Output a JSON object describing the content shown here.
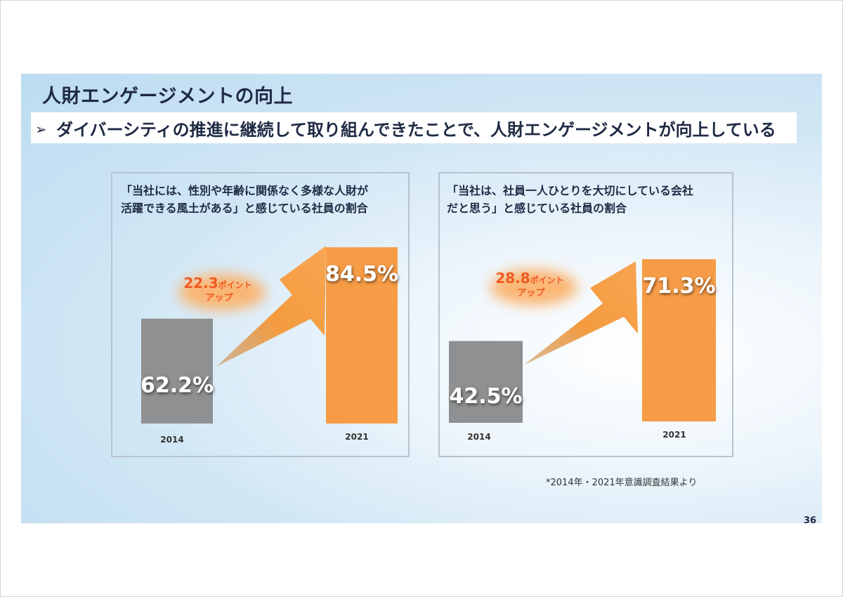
{
  "page": {
    "title": "人財エンゲージメントの向上",
    "subtitle": "ダイバーシティの推進に継続して取り組んできたことで、人財エンゲージメントが向上している",
    "subtitle_bullet": "➢",
    "footnote": "*2014年・2021年意識調査結果より",
    "page_number": "36"
  },
  "colors": {
    "bar_2014": "#8e9091",
    "bar_2021": "#f79c46",
    "arrow": "#f49b3e",
    "callout_text": "#f15a22",
    "title_text": "#1f2a44"
  },
  "chart_data": [
    {
      "type": "bar",
      "caption_lines": [
        "「当社には、性別や年齢に関係なく多様な人財が",
        "活躍できる風土がある」と感じている社員の割合"
      ],
      "categories": [
        "2014",
        "2021"
      ],
      "values": [
        62.2,
        84.5
      ],
      "value_labels": [
        "62.2%",
        "84.5%"
      ],
      "ylim": [
        0,
        100
      ],
      "callout": {
        "number": "22.3",
        "unit": "ポイント",
        "line2": "アップ"
      }
    },
    {
      "type": "bar",
      "caption_lines": [
        "「当社は、社員一人ひとりを大切にしている会社",
        "だと思う」と感じている社員の割合"
      ],
      "categories": [
        "2014",
        "2021"
      ],
      "values": [
        42.5,
        71.3
      ],
      "value_labels": [
        "42.5%",
        "71.3%"
      ],
      "ylim": [
        0,
        100
      ],
      "callout": {
        "number": "28.8",
        "unit": "ポイント",
        "line2": "アップ"
      }
    }
  ]
}
